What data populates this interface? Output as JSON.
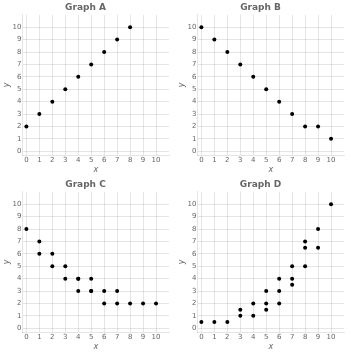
{
  "chart_data": [
    {
      "type": "scatter",
      "title": "Graph A",
      "xlabel": "x",
      "ylabel": "y",
      "x": [
        0,
        1,
        2,
        3,
        4,
        5,
        6,
        7,
        8
      ],
      "y": [
        2,
        3,
        4,
        5,
        6,
        7,
        8,
        9,
        10
      ],
      "color": "#000000",
      "xlim": [
        -0.3,
        11.0
      ],
      "ylim": [
        -0.3,
        11.0
      ],
      "xticks": [
        0,
        1,
        2,
        3,
        4,
        5,
        6,
        7,
        8,
        9,
        10
      ],
      "yticks": [
        0,
        1,
        2,
        3,
        4,
        5,
        6,
        7,
        8,
        9,
        10
      ],
      "grid": true
    },
    {
      "type": "scatter",
      "title": "Graph B",
      "xlabel": "x",
      "ylabel": "y",
      "x": [
        0,
        1,
        2,
        3,
        4,
        5,
        6,
        7,
        8,
        9,
        10
      ],
      "y": [
        10,
        9,
        8,
        7,
        6,
        5,
        4,
        3,
        2,
        2,
        1
      ],
      "color": "#000000",
      "xlim": [
        -0.3,
        11.0
      ],
      "ylim": [
        -0.3,
        11.0
      ],
      "xticks": [
        0,
        1,
        2,
        3,
        4,
        5,
        6,
        7,
        8,
        9,
        10
      ],
      "yticks": [
        0,
        1,
        2,
        3,
        4,
        5,
        6,
        7,
        8,
        9,
        10
      ],
      "grid": true
    },
    {
      "type": "scatter",
      "title": "Graph C",
      "xlabel": "x",
      "ylabel": "y",
      "x": [
        0,
        1,
        1,
        2,
        2,
        3,
        3,
        4,
        4,
        4,
        5,
        5,
        5,
        6,
        6,
        7,
        7,
        8,
        9,
        10
      ],
      "y": [
        8,
        7,
        6,
        6,
        5,
        5,
        4,
        4,
        4,
        3,
        4,
        3,
        3,
        3,
        2,
        3,
        2,
        2,
        2,
        2
      ],
      "color": "#000000",
      "xlim": [
        -0.3,
        11.0
      ],
      "ylim": [
        -0.3,
        11.0
      ],
      "xticks": [
        0,
        1,
        2,
        3,
        4,
        5,
        6,
        7,
        8,
        9,
        10
      ],
      "yticks": [
        0,
        1,
        2,
        3,
        4,
        5,
        6,
        7,
        8,
        9,
        10
      ],
      "grid": true
    },
    {
      "type": "scatter",
      "title": "Graph D",
      "xlabel": "x",
      "ylabel": "y",
      "x": [
        0,
        1,
        2,
        3,
        3,
        4,
        4,
        5,
        5,
        5,
        6,
        6,
        6,
        7,
        7,
        7,
        8,
        8,
        8,
        9,
        9,
        10
      ],
      "y": [
        0.5,
        0.5,
        0.5,
        1,
        1.5,
        1,
        2,
        2,
        1.5,
        3,
        2,
        3,
        4,
        3.5,
        5,
        4,
        6.5,
        5,
        7,
        8,
        6.5,
        10
      ],
      "color": "#000000",
      "xlim": [
        -0.3,
        11.0
      ],
      "ylim": [
        -0.3,
        11.0
      ],
      "xticks": [
        0,
        1,
        2,
        3,
        4,
        5,
        6,
        7,
        8,
        9,
        10
      ],
      "yticks": [
        0,
        1,
        2,
        3,
        4,
        5,
        6,
        7,
        8,
        9,
        10
      ],
      "grid": true
    }
  ]
}
